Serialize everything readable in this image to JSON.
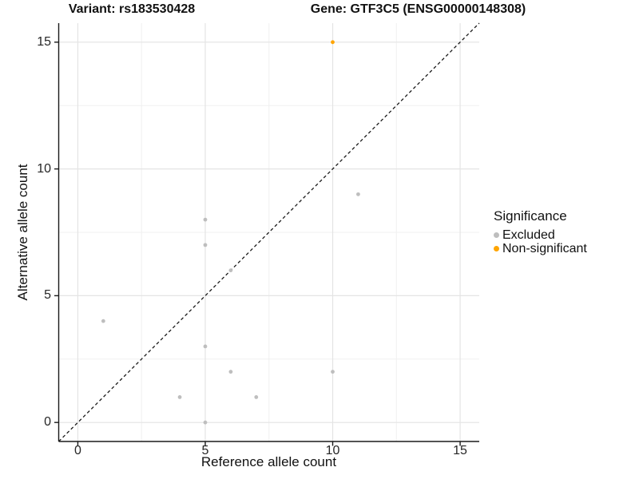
{
  "figure": {
    "title_left": "Variant: rs183530428",
    "title_right": "Gene: GTF3C5 (ENSG00000148308)"
  },
  "chart_data": {
    "type": "scatter",
    "title_left": "Variant: rs183530428",
    "title_right": "Gene: GTF3C5 (ENSG00000148308)",
    "xlabel": "Reference allele count",
    "ylabel": "Alternative allele count",
    "xlim": [
      -0.75,
      15.75
    ],
    "ylim": [
      -0.75,
      15.75
    ],
    "x_ticks": [
      0,
      5,
      10,
      15
    ],
    "y_ticks": [
      0,
      5,
      10,
      15
    ],
    "x_minor_ticks": [
      2.5,
      7.5,
      12.5
    ],
    "y_minor_ticks": [
      2.5,
      7.5,
      12.5
    ],
    "grid": true,
    "legend_position": "right",
    "identity_line": {
      "style": "dashed",
      "from": [
        -0.75,
        -0.75
      ],
      "to": [
        15.75,
        15.75
      ],
      "color": "#1a1a1a"
    },
    "series": [
      {
        "name": "Excluded",
        "color": "#BEBEBE",
        "points": [
          [
            1,
            4
          ],
          [
            4,
            1
          ],
          [
            5,
            0
          ],
          [
            5,
            3
          ],
          [
            5,
            7
          ],
          [
            5,
            8
          ],
          [
            6,
            2
          ],
          [
            6,
            6
          ],
          [
            7,
            1
          ],
          [
            10,
            2
          ],
          [
            11,
            9
          ]
        ]
      },
      {
        "name": "Non-significant",
        "color": "#FFA500",
        "points": [
          [
            10,
            15
          ]
        ]
      }
    ],
    "legend": {
      "title": "Significance",
      "entries": [
        {
          "label": "Excluded",
          "color": "#BEBEBE"
        },
        {
          "label": "Non-significant",
          "color": "#FFA500"
        }
      ]
    },
    "colors": {
      "background": "#ffffff",
      "axis_line": "#1a1a1a",
      "tick_text": "#262626",
      "grid_major": "#e4e4e4",
      "grid_minor": "#f0f0f0",
      "excluded_point": "#BEBEBE",
      "non_significant_point": "#FFA500"
    }
  }
}
